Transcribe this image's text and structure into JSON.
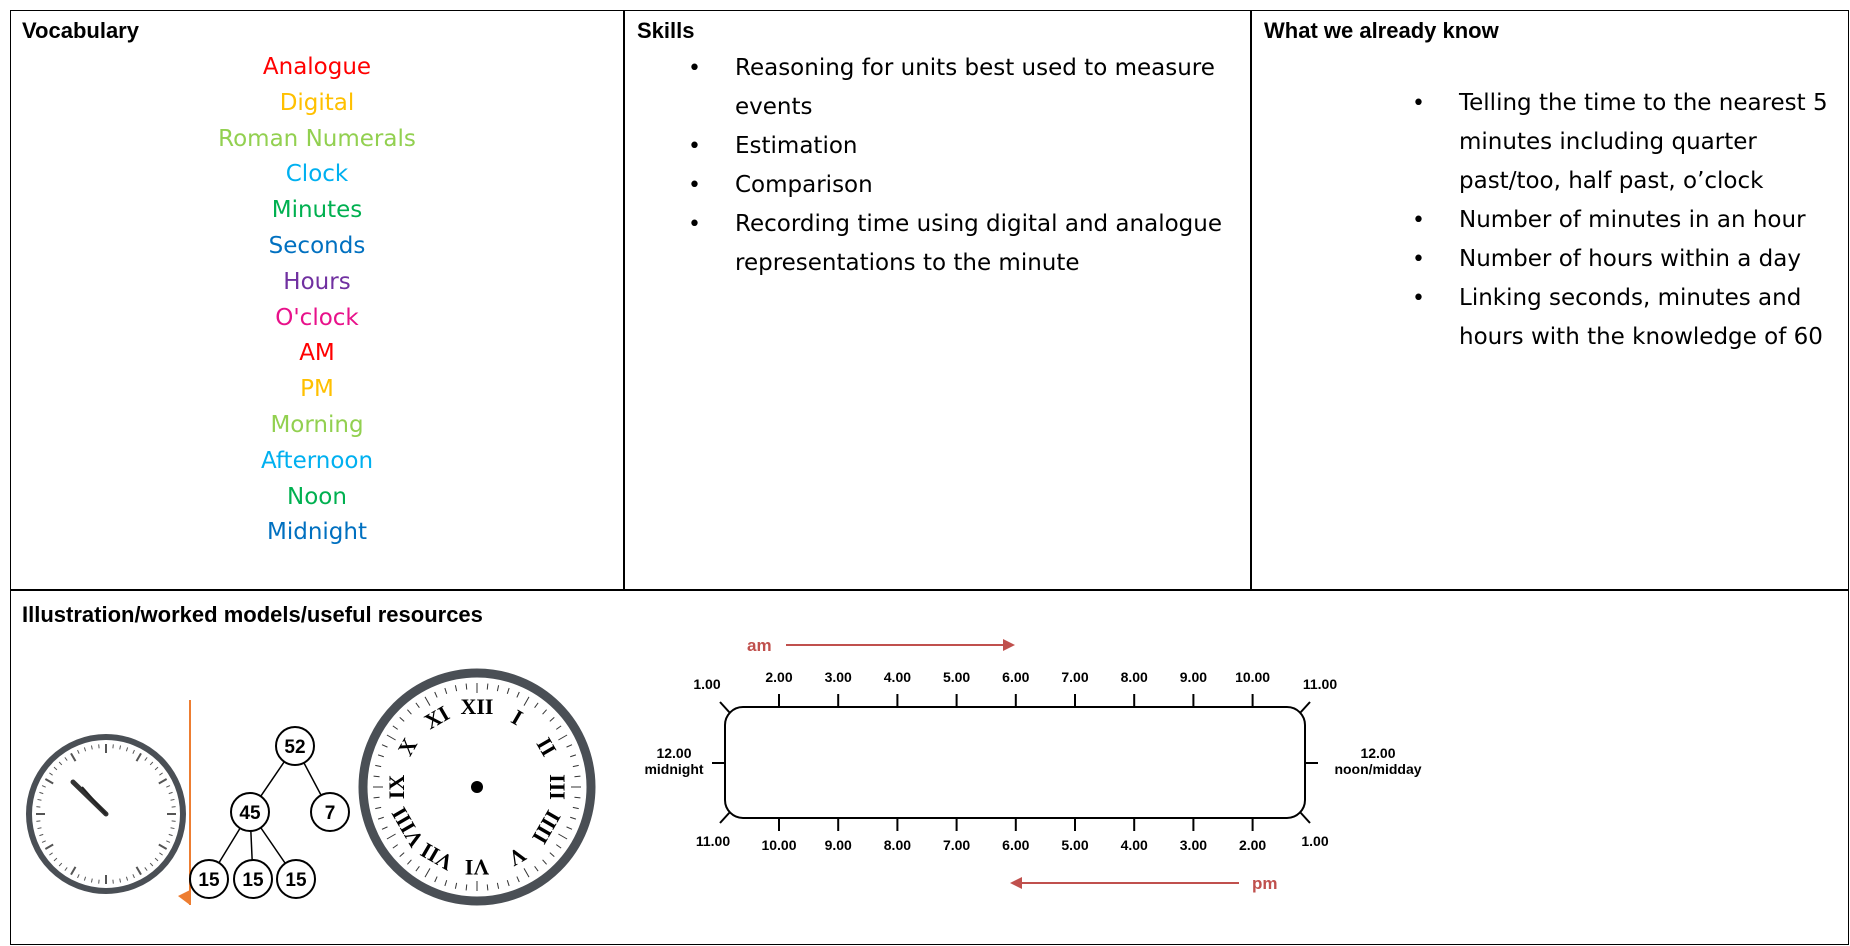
{
  "vocabulary": {
    "title": "Vocabulary",
    "words": [
      {
        "text": "Analogue",
        "color": "#ff0000"
      },
      {
        "text": "Digital",
        "color": "#ffc000"
      },
      {
        "text": "Roman Numerals",
        "color": "#92d050"
      },
      {
        "text": "Clock",
        "color": "#00b0f0"
      },
      {
        "text": "Minutes",
        "color": "#00b050"
      },
      {
        "text": "Seconds",
        "color": "#0070c0"
      },
      {
        "text": "Hours",
        "color": "#7030a0"
      },
      {
        "text": "O'clock",
        "color": "#e8118a"
      },
      {
        "text": "AM",
        "color": "#ff0000"
      },
      {
        "text": "PM",
        "color": "#ffc000"
      },
      {
        "text": "Morning",
        "color": "#92d050"
      },
      {
        "text": "Afternoon",
        "color": "#00b0f0"
      },
      {
        "text": "Noon",
        "color": "#00b050"
      },
      {
        "text": "Midnight",
        "color": "#0070c0"
      }
    ]
  },
  "skills": {
    "title": "Skills",
    "items": [
      "Reasoning for units best used to measure events",
      "Estimation",
      "Comparison",
      "Recording time using digital and analogue representations to the minute"
    ]
  },
  "known": {
    "title": "What we already know",
    "items": [
      "Telling the time to the nearest 5 minutes including quarter past/too, half past, o’clock",
      "Number of minutes in an hour",
      "Number of hours within a day",
      "Linking seconds, minutes and hours with the knowledge of 60"
    ]
  },
  "resources": {
    "title": "Illustration/worked models/useful resources",
    "number_bond": [
      52,
      45,
      7,
      15,
      15,
      15
    ],
    "roman_numerals": [
      "XII",
      "I",
      "II",
      "III",
      "IIII",
      "V",
      "VI",
      "VII",
      "VIII",
      "IX",
      "X",
      "XI"
    ],
    "timeline": {
      "am": "am",
      "pm": "pm",
      "top_labels": [
        "1.00",
        "2.00",
        "3.00",
        "4.00",
        "5.00",
        "6.00",
        "7.00",
        "8.00",
        "9.00",
        "10.00",
        "11.00"
      ],
      "bottom_labels": [
        "11.00",
        "10.00",
        "9.00",
        "8.00",
        "7.00",
        "6.00",
        "5.00",
        "4.00",
        "3.00",
        "2.00",
        "1.00"
      ],
      "left": [
        "12.00",
        "midnight"
      ],
      "right": [
        "12.00",
        "noon/midday"
      ]
    }
  }
}
